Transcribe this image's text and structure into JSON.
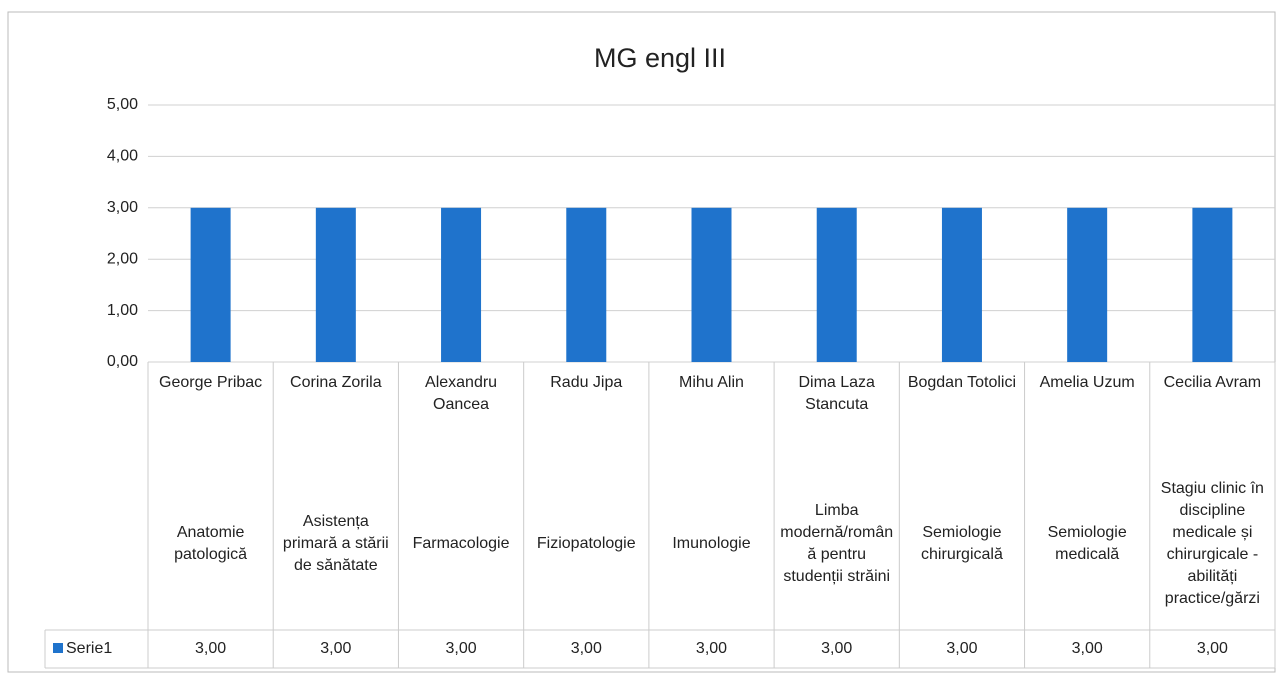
{
  "chart_data": {
    "type": "bar",
    "title": "MG engl III",
    "categories": [
      "George Pribac",
      "Corina Zorila",
      "Alexandru Oancea",
      "Radu Jipa",
      "Mihu Alin",
      "Dima Laza Stancuta",
      "Bogdan Totolici",
      "Amelia Uzum",
      "Cecilia Avram"
    ],
    "subcategories": [
      "Anatomie patologică",
      "Asistența primară a stării de sănătate",
      "Farmacologie",
      "Fiziopatologie",
      "Imunologie",
      "Limba modernă/română pentru studenții străini",
      "Semiologie chirurgicală",
      "Semiologie medicală",
      "Stagiu clinic în discipline medicale și chirurgicale - abilități practice/gărzi"
    ],
    "series": [
      {
        "name": "Serie1",
        "color": "#1f73cc",
        "values": [
          3,
          3,
          3,
          3,
          3,
          3,
          3,
          3,
          3
        ],
        "value_labels": [
          "3,00",
          "3,00",
          "3,00",
          "3,00",
          "3,00",
          "3,00",
          "3,00",
          "3,00",
          "3,00"
        ]
      }
    ],
    "ylim": [
      0,
      5
    ],
    "yticks": [
      {
        "value": 0,
        "label": "0,00"
      },
      {
        "value": 1,
        "label": "1,00"
      },
      {
        "value": 2,
        "label": "2,00"
      },
      {
        "value": 3,
        "label": "3,00"
      },
      {
        "value": 4,
        "label": "4,00"
      },
      {
        "value": 5,
        "label": "5,00"
      }
    ],
    "grid": true,
    "legend": "table"
  }
}
